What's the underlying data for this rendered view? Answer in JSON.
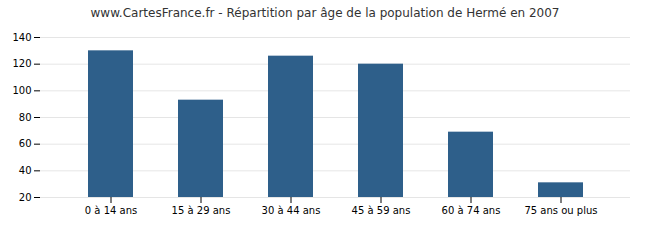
{
  "chart_data": {
    "type": "bar",
    "title": "www.CartesFrance.fr - Répartition par âge de la population de Hermé en 2007",
    "categories": [
      "0 à 14 ans",
      "15 à 29 ans",
      "30 à 44 ans",
      "45 à 59 ans",
      "60 à 74 ans",
      "75 ans ou plus"
    ],
    "values": [
      130,
      93,
      126,
      120,
      69,
      31
    ],
    "color": "#2e5f8a",
    "ylim": [
      20,
      140
    ],
    "yticks": [
      20,
      40,
      60,
      80,
      100,
      120,
      140
    ],
    "grid": true
  }
}
